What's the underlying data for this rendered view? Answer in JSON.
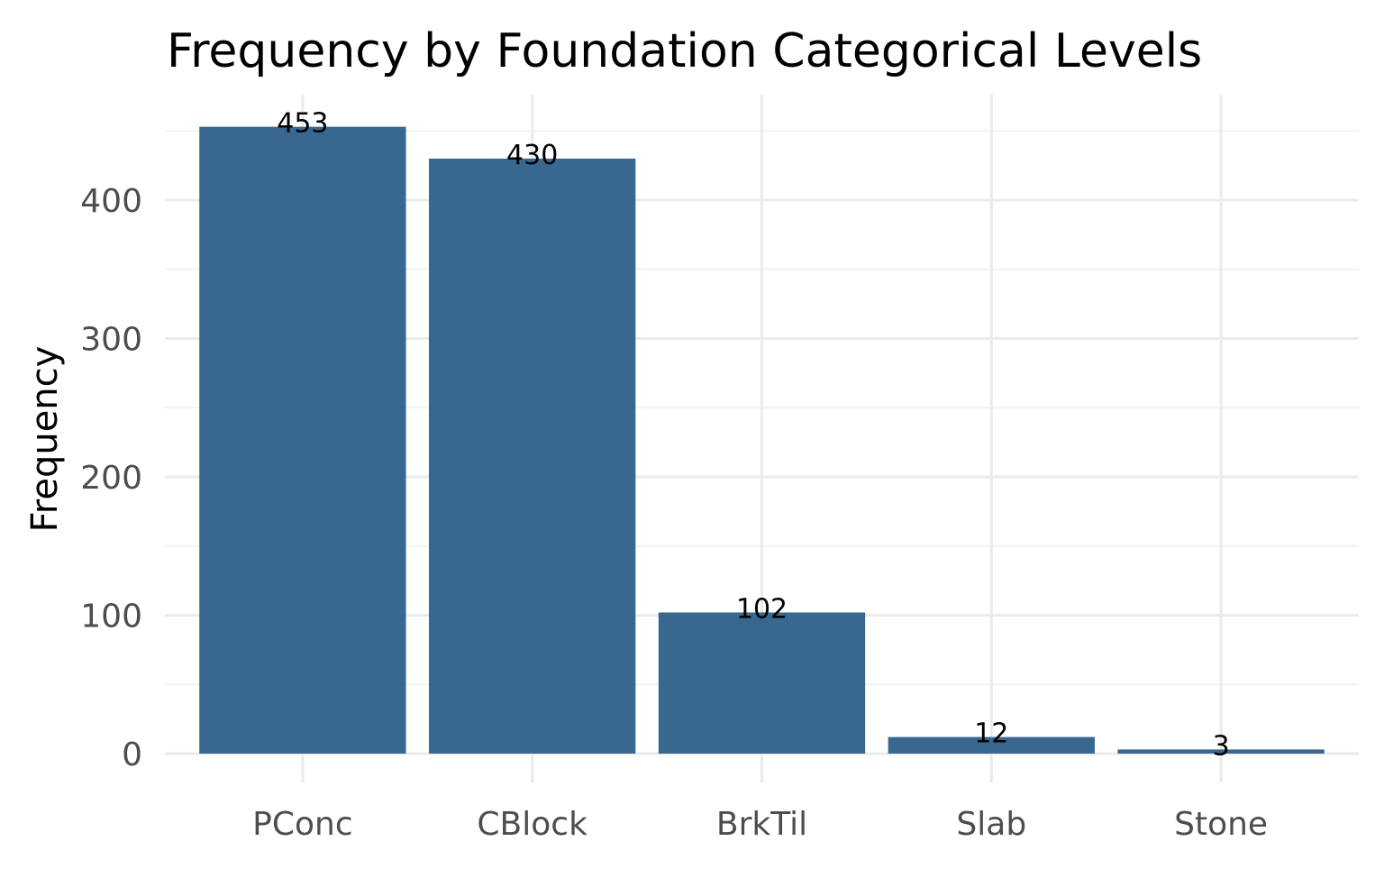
{
  "chart_data": {
    "type": "bar",
    "title": "Frequency by Foundation Categorical Levels",
    "xlabel": "",
    "ylabel": "Frequency",
    "categories": [
      "PConc",
      "CBlock",
      "BrkTil",
      "Slab",
      "Stone"
    ],
    "values": [
      453,
      430,
      102,
      12,
      3
    ],
    "data_labels": [
      "453",
      "430",
      "102",
      "12",
      "3"
    ],
    "yticks": [
      0,
      100,
      200,
      300,
      400
    ],
    "ytick_labels": [
      "0",
      "100",
      "200",
      "300",
      "400"
    ],
    "ylim": [
      0,
      475
    ],
    "grid": true,
    "legend": "none",
    "bar_color": "#386890"
  }
}
